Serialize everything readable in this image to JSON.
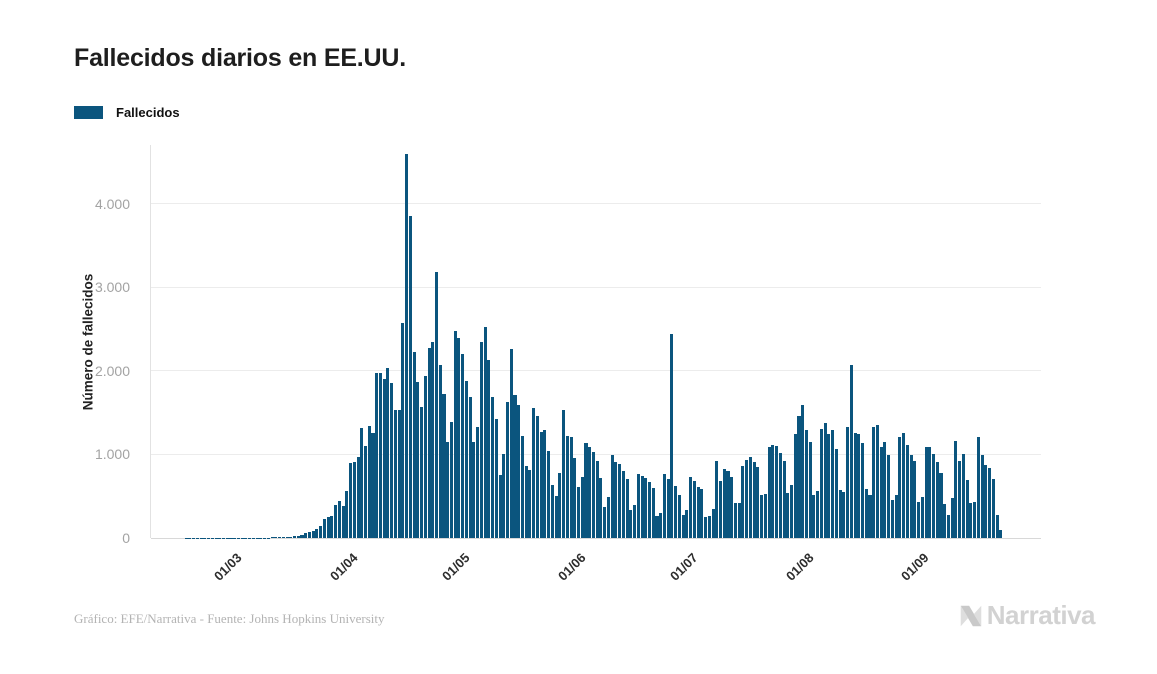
{
  "page": {
    "title": "Fallecidos diarios en EE.UU.",
    "footer": "Gráfico: EFE/Narrativa - Fuente: Johns Hopkins University",
    "brand": "Narrativa"
  },
  "legend": {
    "label": "Fallecidos",
    "color": "#0b557e"
  },
  "chart_data": {
    "type": "bar",
    "title": "Fallecidos diarios en EE.UU.",
    "xlabel": "",
    "ylabel": "Número de fallecidos",
    "ylim": [
      0,
      4700
    ],
    "grid": true,
    "legend_position": "top-left",
    "yticks": [
      0,
      1000,
      2000,
      3000,
      4000
    ],
    "ytick_labels": [
      "0",
      "1.000",
      "2.000",
      "3.000",
      "4.000"
    ],
    "x_ticks": [
      {
        "label": "01/03",
        "index": 23
      },
      {
        "label": "01/04",
        "index": 54
      },
      {
        "label": "01/05",
        "index": 84
      },
      {
        "label": "01/06",
        "index": 115
      },
      {
        "label": "01/07",
        "index": 145
      },
      {
        "label": "01/08",
        "index": 176
      },
      {
        "label": "01/09",
        "index": 207
      }
    ],
    "x_unit": "day",
    "series": [
      {
        "name": "Fallecidos",
        "color": "#0b557e",
        "values": [
          0,
          0,
          0,
          0,
          0,
          0,
          0,
          0,
          0,
          1,
          1,
          1,
          1,
          1,
          2,
          1,
          2,
          1,
          1,
          1,
          2,
          1,
          1,
          1,
          4,
          3,
          3,
          2,
          3,
          4,
          4,
          5,
          7,
          9,
          11,
          10,
          13,
          17,
          23,
          26,
          42,
          57,
          68,
          88,
          111,
          141,
          225,
          247,
          267,
          400,
          445,
          386,
          558,
          895,
          909,
          968,
          1321,
          1104,
          1344,
          1255,
          1970,
          1973,
          1900,
          2035,
          1857,
          1528,
          1535,
          2571,
          4591,
          3857,
          2229,
          1867,
          1561,
          1939,
          2268,
          2341,
          3179,
          2065,
          1728,
          1152,
          1384,
          2470,
          2390,
          2201,
          1883,
          1691,
          1154,
          1324,
          2350,
          2528,
          2129,
          1687,
          1422,
          750,
          1008,
          1630,
          2260,
          1715,
          1595,
          1218,
          865,
          808,
          1552,
          1461,
          1263,
          1293,
          1037,
          638,
          500,
          774,
          1535,
          1223,
          1212,
          960,
          605,
          730,
          1134,
          1083,
          1031,
          921,
          714,
          373,
          487,
          994,
          906,
          891,
          802,
          709,
          330,
          389,
          764,
          744,
          720,
          672,
          594,
          267,
          294,
          771,
          700,
          2437,
          624,
          512,
          271,
          335,
          724,
          679,
          613,
          585,
          254,
          263,
          351,
          926,
          684,
          830,
          805,
          732,
          420,
          414,
          858,
          935,
          963,
          908,
          853,
          516,
          527,
          1089,
          1117,
          1104,
          1019,
          916,
          537,
          636,
          1244,
          1461,
          1595,
          1290,
          1148,
          520,
          563,
          1302,
          1380,
          1244,
          1290,
          1064,
          571,
          555,
          1324,
          2066,
          1252,
          1247,
          1131,
          586,
          512,
          1324,
          1356,
          1090,
          1154,
          987,
          450,
          511,
          1211,
          1250,
          1116,
          994,
          922,
          430,
          486,
          1085,
          1089,
          1002,
          906,
          773,
          407,
          277,
          476,
          1164,
          925,
          1002,
          698,
          418,
          436,
          1213,
          998,
          878,
          838,
          704,
          271,
          97
        ]
      }
    ]
  }
}
